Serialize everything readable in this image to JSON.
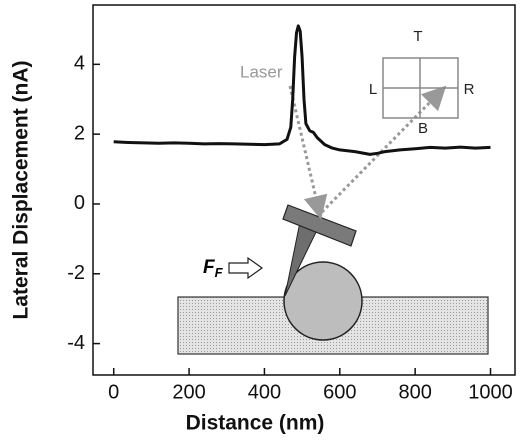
{
  "chart_data": {
    "type": "line",
    "x_label": "Distance (nm)",
    "y_label": "Lateral Displacement (nA)",
    "x": [
      0,
      40,
      80,
      120,
      160,
      200,
      240,
      280,
      320,
      360,
      400,
      440,
      460,
      470,
      475,
      480,
      485,
      490,
      495,
      500,
      505,
      510,
      520,
      530,
      540,
      560,
      580,
      600,
      640,
      680,
      700,
      720,
      760,
      800,
      840,
      880,
      920,
      960,
      1000
    ],
    "values": [
      1.78,
      1.76,
      1.75,
      1.74,
      1.75,
      1.74,
      1.72,
      1.73,
      1.72,
      1.71,
      1.7,
      1.72,
      1.85,
      2.2,
      3.0,
      4.2,
      4.9,
      5.1,
      4.95,
      4.2,
      3.0,
      2.3,
      2.1,
      2.05,
      1.9,
      1.7,
      1.6,
      1.55,
      1.5,
      1.42,
      1.45,
      1.5,
      1.55,
      1.58,
      1.62,
      1.6,
      1.63,
      1.6,
      1.62
    ],
    "color": "#111111",
    "xlim": [
      -55,
      1065
    ],
    "ylim": [
      -4.9,
      5.7
    ],
    "xticks": [
      0,
      200,
      400,
      600,
      800,
      1000
    ],
    "yticks": [
      -4,
      -2,
      0,
      2,
      4
    ],
    "annotations": {
      "laser": "Laser",
      "top": "T",
      "left": "L",
      "right": "R",
      "bottom": "B",
      "force": "F",
      "force_sub": "F"
    }
  }
}
